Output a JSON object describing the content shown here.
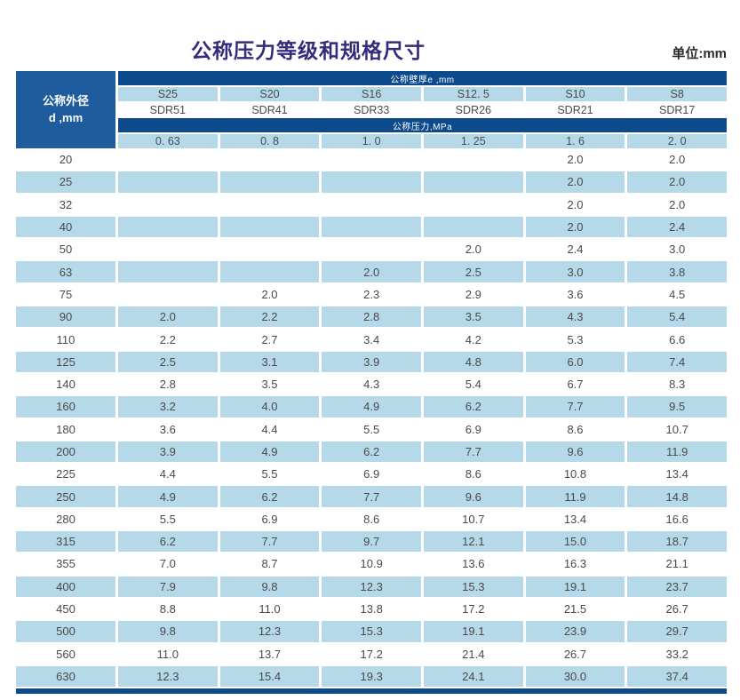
{
  "page": {
    "title": "公称压力等级和规格尺寸",
    "unit_label": "单位:mm"
  },
  "table": {
    "corner_header": {
      "line1": "公称外径",
      "line2": "d ,mm"
    },
    "wall_thickness_band": "公称壁厚e ,mm",
    "pressure_band": "公称压力,MPa",
    "s_labels": [
      "S25",
      "S20",
      "S16",
      "S12. 5",
      "S10",
      "S8"
    ],
    "sdr_labels": [
      "SDR51",
      "SDR41",
      "SDR33",
      "SDR26",
      "SDR21",
      "SDR17"
    ],
    "pressure_values": [
      "0. 63",
      "0. 8",
      "1. 0",
      "1. 25",
      "1. 6",
      "2. 0"
    ],
    "rows": [
      {
        "d": "20",
        "values": [
          "",
          "",
          "",
          "",
          "2.0",
          "2.0"
        ]
      },
      {
        "d": "25",
        "values": [
          "",
          "",
          "",
          "",
          "2.0",
          "2.0"
        ]
      },
      {
        "d": "32",
        "values": [
          "",
          "",
          "",
          "",
          "2.0",
          "2.0"
        ]
      },
      {
        "d": "40",
        "values": [
          "",
          "",
          "",
          "",
          "2.0",
          "2.4"
        ]
      },
      {
        "d": "50",
        "values": [
          "",
          "",
          "",
          "2.0",
          "2.4",
          "3.0"
        ]
      },
      {
        "d": "63",
        "values": [
          "",
          "",
          "2.0",
          "2.5",
          "3.0",
          "3.8"
        ]
      },
      {
        "d": "75",
        "values": [
          "",
          "2.0",
          "2.3",
          "2.9",
          "3.6",
          "4.5"
        ]
      },
      {
        "d": "90",
        "values": [
          "2.0",
          "2.2",
          "2.8",
          "3.5",
          "4.3",
          "5.4"
        ]
      },
      {
        "d": "110",
        "values": [
          "2.2",
          "2.7",
          "3.4",
          "4.2",
          "5.3",
          "6.6"
        ]
      },
      {
        "d": "125",
        "values": [
          "2.5",
          "3.1",
          "3.9",
          "4.8",
          "6.0",
          "7.4"
        ]
      },
      {
        "d": "140",
        "values": [
          "2.8",
          "3.5",
          "4.3",
          "5.4",
          "6.7",
          "8.3"
        ]
      },
      {
        "d": "160",
        "values": [
          "3.2",
          "4.0",
          "4.9",
          "6.2",
          "7.7",
          "9.5"
        ]
      },
      {
        "d": "180",
        "values": [
          "3.6",
          "4.4",
          "5.5",
          "6.9",
          "8.6",
          "10.7"
        ]
      },
      {
        "d": "200",
        "values": [
          "3.9",
          "4.9",
          "6.2",
          "7.7",
          "9.6",
          "11.9"
        ]
      },
      {
        "d": "225",
        "values": [
          "4.4",
          "5.5",
          "6.9",
          "8.6",
          "10.8",
          "13.4"
        ]
      },
      {
        "d": "250",
        "values": [
          "4.9",
          "6.2",
          "7.7",
          "9.6",
          "11.9",
          "14.8"
        ]
      },
      {
        "d": "280",
        "values": [
          "5.5",
          "6.9",
          "8.6",
          "10.7",
          "13.4",
          "16.6"
        ]
      },
      {
        "d": "315",
        "values": [
          "6.2",
          "7.7",
          "9.7",
          "12.1",
          "15.0",
          "18.7"
        ]
      },
      {
        "d": "355",
        "values": [
          "7.0",
          "8.7",
          "10.9",
          "13.6",
          "16.3",
          "21.1"
        ]
      },
      {
        "d": "400",
        "values": [
          "7.9",
          "9.8",
          "12.3",
          "15.3",
          "19.1",
          "23.7"
        ]
      },
      {
        "d": "450",
        "values": [
          "8.8",
          "11.0",
          "13.8",
          "17.2",
          "21.5",
          "26.7"
        ]
      },
      {
        "d": "500",
        "values": [
          "9.8",
          "12.3",
          "15.3",
          "19.1",
          "23.9",
          "29.7"
        ]
      },
      {
        "d": "560",
        "values": [
          "11.0",
          "13.7",
          "17.2",
          "21.4",
          "26.7",
          "33.2"
        ]
      },
      {
        "d": "630",
        "values": [
          "12.3",
          "15.4",
          "19.3",
          "24.1",
          "30.0",
          "37.4"
        ]
      }
    ]
  },
  "colors": {
    "band_navy": "#0d4a8c",
    "corner_blue": "#1f5c9e",
    "light_blue": "#b5d9e8",
    "title_indigo": "#332c7d",
    "cell_text": "#4a4a4a"
  }
}
